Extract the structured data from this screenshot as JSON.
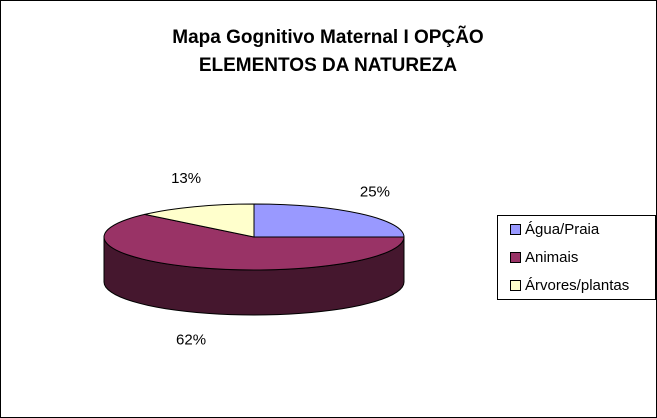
{
  "chart_data": {
    "type": "pie3d",
    "title": [
      "Mapa Gognitivo Maternal I OPÇÃO",
      "ELEMENTOS DA NATUREZA"
    ],
    "categories": [
      "Água/Praia",
      "Animais",
      "Árvores/plantas"
    ],
    "values": [
      25,
      62,
      13
    ],
    "value_labels": [
      "25%",
      "62%",
      "13%"
    ],
    "colors": [
      "#9999ff",
      "#993366",
      "#ffffcc"
    ],
    "legend": "right"
  }
}
